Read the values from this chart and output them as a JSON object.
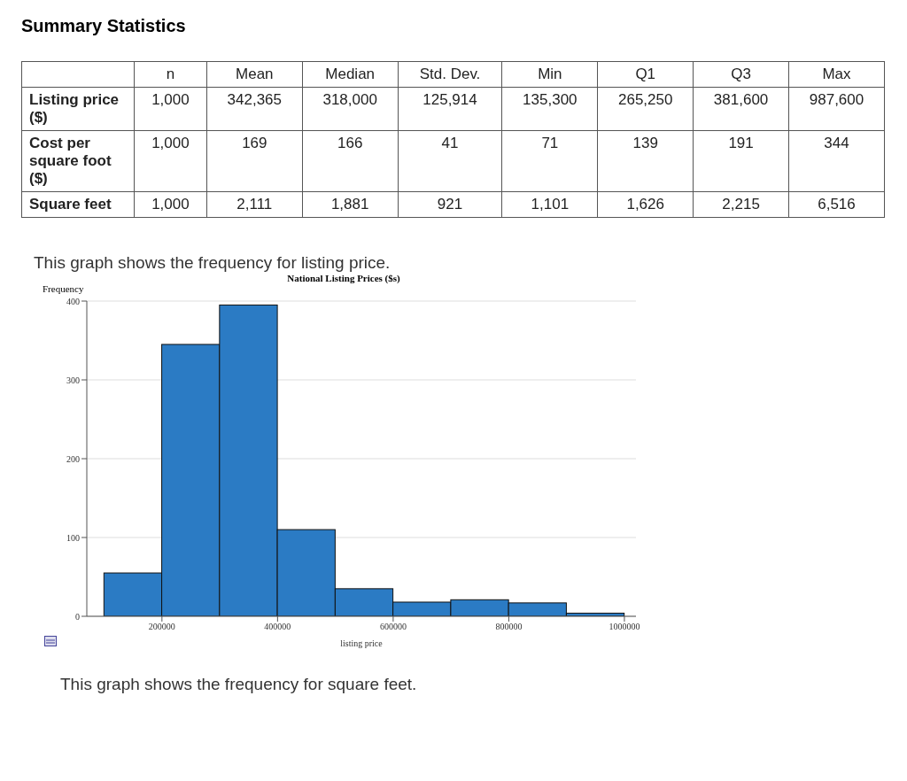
{
  "chart_data": [
    {
      "type": "other",
      "title": "Summary Statistics",
      "annotations": [
        "n",
        "Mean",
        "Median",
        "Std. Dev.",
        "Min",
        "Q1",
        "Q3",
        "Max",
        "Listing price ($)",
        "1,000",
        "342,365",
        "318,000",
        "125,914",
        "135,300",
        "265,250",
        "381,600",
        "987,600",
        "Cost per square foot ($)",
        "1,000",
        "169",
        "166",
        "41",
        "71",
        "139",
        "191",
        "344",
        "Square feet",
        "1,000",
        "2,111",
        "1,881",
        "921",
        "1,101",
        "1,626",
        "2,215",
        "6,516"
      ]
    },
    {
      "type": "histogram",
      "title": "National Listing Prices ($s)",
      "xlabel": "listing price",
      "ylabel": "Frequency",
      "annotations": [
        "This graph shows the frequency for listing price.",
        "This graph shows the frequency for square feet."
      ],
      "bins": [
        100000,
        200000,
        300000,
        400000,
        500000,
        600000,
        700000,
        800000,
        900000,
        1000000
      ],
      "values": [
        55,
        345,
        395,
        110,
        35,
        18,
        21,
        17,
        4
      ],
      "color": "#2b7bc4",
      "xlim": [
        70000,
        1020000
      ],
      "xticks": [
        200000,
        400000,
        600000,
        800000,
        1000000
      ],
      "ylim": [
        0,
        400
      ],
      "yticks": [
        0,
        100,
        200,
        300,
        400
      ],
      "grid": "y"
    }
  ]
}
